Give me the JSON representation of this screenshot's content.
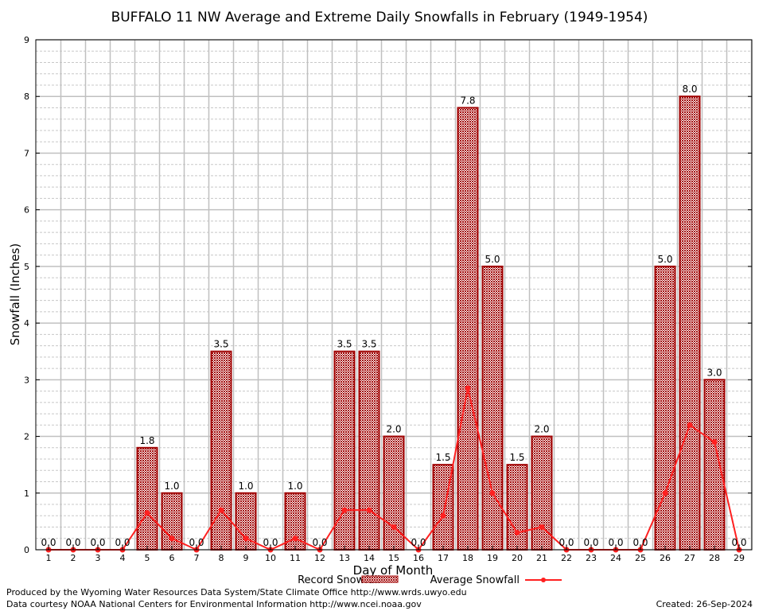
{
  "chart_data": {
    "type": "bar",
    "title": "BUFFALO 11 NW Average and Extreme Daily Snowfalls in February (1949-1954)",
    "xlabel": "Day of Month",
    "ylabel": "Snowfall (Inches)",
    "ylim": [
      0,
      9
    ],
    "yticks": [
      "0",
      "1",
      "2",
      "3",
      "4",
      "5",
      "6",
      "7",
      "8",
      "9"
    ],
    "categories": [
      "1",
      "2",
      "3",
      "4",
      "5",
      "6",
      "7",
      "8",
      "9",
      "10",
      "11",
      "12",
      "13",
      "14",
      "15",
      "16",
      "17",
      "18",
      "19",
      "20",
      "21",
      "22",
      "23",
      "24",
      "25",
      "26",
      "27",
      "28",
      "29"
    ],
    "series": [
      {
        "name": "Record Snowfall",
        "type": "bar",
        "color": "#a00000",
        "values": [
          0,
          0,
          0,
          0,
          1.8,
          1.0,
          0,
          3.5,
          1.0,
          0,
          1.0,
          0,
          3.5,
          3.5,
          2.0,
          0,
          1.5,
          7.8,
          5.0,
          1.5,
          2.0,
          0,
          0,
          0,
          0,
          5.0,
          8.0,
          3.0,
          0
        ]
      },
      {
        "name": "Average Snowfall",
        "type": "line",
        "color": "#ff2020",
        "values": [
          0,
          0,
          0,
          0,
          0.65,
          0.2,
          0,
          0.7,
          0.2,
          0,
          0.2,
          0,
          0.7,
          0.7,
          0.4,
          0,
          0.6,
          2.85,
          1.0,
          0.3,
          0.4,
          0,
          0,
          0,
          0,
          1.0,
          2.2,
          1.9,
          0
        ]
      }
    ],
    "data_labels": [
      "0.0",
      "0.0",
      "0.0",
      "0.0",
      "1.8",
      "1.0",
      "0.0",
      "3.5",
      "1.0",
      "0.0",
      "1.0",
      "0.0",
      "3.5",
      "3.5",
      "2.0",
      "0.0",
      "1.5",
      "7.8",
      "5.0",
      "1.5",
      "2.0",
      "0.0",
      "0.0",
      "0.0",
      "0.0",
      "5.0",
      "8.0",
      "3.0",
      "0.0"
    ],
    "grid": true,
    "legend": "bottom-center"
  },
  "footer": {
    "produced": "Produced by the Wyoming Water Resources Data System/State Climate Office http://www.wrds.uwyo.edu",
    "courtesy": "Data courtesy NOAA National Centers for Environmental Information http://www.ncei.noaa.gov",
    "created": "Created: 26-Sep-2024"
  }
}
